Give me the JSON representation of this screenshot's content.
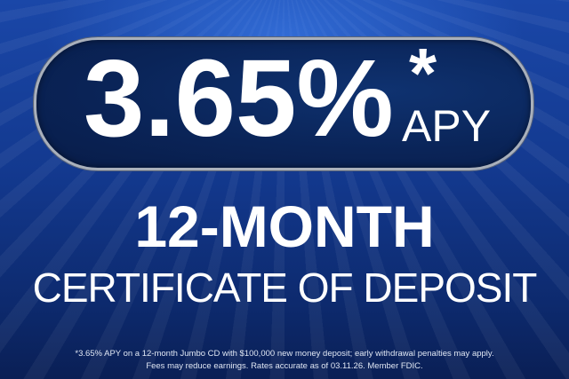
{
  "headline": {
    "rate": "3.65%",
    "asterisk": "*",
    "rate_type": "APY"
  },
  "term": "12-MONTH",
  "product": "CERTIFICATE OF DEPOSIT",
  "disclaimer": {
    "line1": "*3.65% APY on a 12-month Jumbo CD with $100,000 new money deposit; early withdrawal penalties may apply.",
    "line2": "Fees may reduce earnings. Rates accurate as of 03.11.26. Member FDIC."
  },
  "colors": {
    "background": "#13398f",
    "pill": "#0a2458",
    "pill_border": "#a9b0bb",
    "text": "#ffffff"
  }
}
